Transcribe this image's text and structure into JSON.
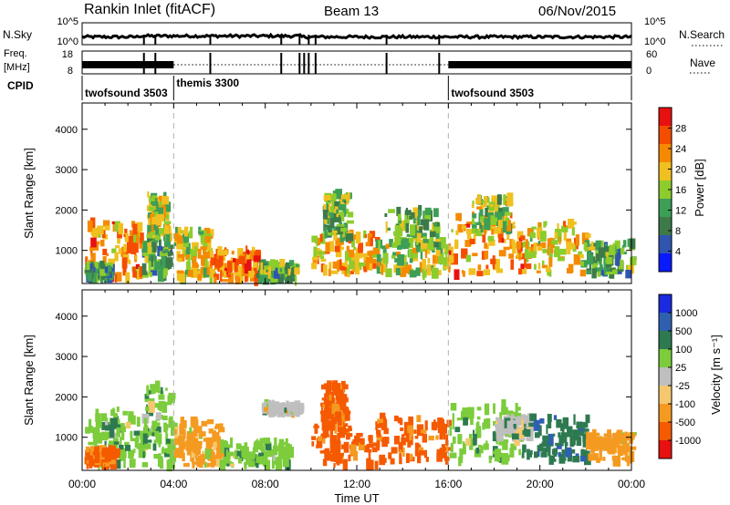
{
  "header": {
    "title": "Rankin Inlet (fitACF)",
    "beam": "Beam 13",
    "date": "06/Nov/2015"
  },
  "time_axis": {
    "label": "Time UT",
    "ticks": [
      "00:00",
      "04:00",
      "08:00",
      "12:00",
      "16:00",
      "20:00",
      "00:00"
    ],
    "hours": [
      0,
      4,
      8,
      12,
      16,
      20,
      24
    ]
  },
  "top_panels": {
    "nsky": {
      "label": "N.Sky",
      "tick_top": "10^5",
      "tick_bottom": "10^0",
      "right_label": "N.Search",
      "right_ticks": [
        "10^5",
        "10^0"
      ]
    },
    "freq": {
      "label_line1": "Freq.",
      "label_line2": "[MHz]",
      "ticks": [
        "18",
        "8"
      ],
      "right_label": "Nave",
      "right_ticks": [
        "60",
        "0"
      ]
    },
    "cpid": {
      "label": "CPID",
      "segments": [
        {
          "name": "twofsound 3503",
          "start": 0,
          "end": 4
        },
        {
          "name": "themis 3300",
          "start": 4,
          "end": 16
        },
        {
          "name": "twofsound 3503",
          "start": 16,
          "end": 24
        }
      ]
    }
  },
  "colors": {
    "power_scale": [
      "#0a1aff",
      "#2f55b0",
      "#3d7a4a",
      "#3d9e56",
      "#8ccc2c",
      "#f0c020",
      "#f58a00",
      "#f54d00",
      "#e81010"
    ],
    "velocity_scale": [
      "#e81010",
      "#f55a00",
      "#f59a20",
      "#f5c870",
      "#bfbfbf",
      "#7ccc3c",
      "#2e7a50",
      "#2f60b0",
      "#1a2ae0"
    ],
    "dashed_line": "#b0b0b0"
  },
  "chart_data": [
    {
      "type": "heatmap",
      "name_role": "power",
      "ylabel": "Slant Range [km]",
      "xlabel": "",
      "yticks": [
        1000,
        2000,
        3000,
        4000
      ],
      "ylim": [
        180,
        4650
      ],
      "xlim": [
        0,
        24
      ],
      "colorbar": {
        "label": "Power [dB]",
        "ticks": [
          4,
          8,
          12,
          16,
          20,
          24,
          28
        ],
        "range": [
          0,
          32
        ]
      },
      "dashed_times": [
        4,
        16
      ],
      "blocks": [
        {
          "t": [
            0.1,
            2.6
          ],
          "r": [
            300,
            1700
          ],
          "value": 26
        },
        {
          "t": [
            0.1,
            1.2
          ],
          "r": [
            300,
            650
          ],
          "value": 12
        },
        {
          "t": [
            2.6,
            3.8
          ],
          "r": [
            350,
            1200
          ],
          "value": 14
        },
        {
          "t": [
            2.8,
            3.7
          ],
          "r": [
            1300,
            2400
          ],
          "value": 20
        },
        {
          "t": [
            4.0,
            5.6
          ],
          "r": [
            300,
            1500
          ],
          "value": 20
        },
        {
          "t": [
            5.6,
            7.6
          ],
          "r": [
            250,
            1000
          ],
          "value": 27
        },
        {
          "t": [
            7.6,
            9.4
          ],
          "r": [
            250,
            700
          ],
          "value": 14
        },
        {
          "t": [
            10.0,
            12.8
          ],
          "r": [
            450,
            1400
          ],
          "value": 24
        },
        {
          "t": [
            10.5,
            11.6
          ],
          "r": [
            1300,
            2400
          ],
          "value": 16
        },
        {
          "t": [
            12.8,
            16.0
          ],
          "r": [
            400,
            1300
          ],
          "value": 20
        },
        {
          "t": [
            13.2,
            15.6
          ],
          "r": [
            1100,
            2000
          ],
          "value": 16
        },
        {
          "t": [
            16.0,
            19.2
          ],
          "r": [
            400,
            1900
          ],
          "value": 26
        },
        {
          "t": [
            17.0,
            18.6
          ],
          "r": [
            1500,
            2300
          ],
          "value": 18
        },
        {
          "t": [
            19.2,
            22.0
          ],
          "r": [
            400,
            1700
          ],
          "value": 22
        },
        {
          "t": [
            22.0,
            24.0
          ],
          "r": [
            400,
            1200
          ],
          "value": 14
        }
      ]
    },
    {
      "type": "heatmap",
      "name_role": "velocity",
      "ylabel": "Slant Range [km]",
      "xlabel": "Time UT",
      "yticks": [
        1000,
        2000,
        3000,
        4000
      ],
      "ylim": [
        180,
        4650
      ],
      "xlim": [
        0,
        24
      ],
      "colorbar": {
        "label": "Velocity [m s⁻¹]",
        "ticks": [
          1000,
          500,
          100,
          25,
          -25,
          -100,
          -500,
          -1000
        ]
      },
      "dashed_times": [
        4,
        16
      ],
      "blocks": [
        {
          "t": [
            0.1,
            2.6
          ],
          "r": [
            300,
            1700
          ],
          "value": 100
        },
        {
          "t": [
            0.1,
            1.4
          ],
          "r": [
            300,
            700
          ],
          "value": -500
        },
        {
          "t": [
            2.6,
            3.9
          ],
          "r": [
            300,
            2300
          ],
          "value": 100
        },
        {
          "t": [
            4.0,
            6.0
          ],
          "r": [
            300,
            1400
          ],
          "value": -100
        },
        {
          "t": [
            6.0,
            9.0
          ],
          "r": [
            300,
            900
          ],
          "value": 100
        },
        {
          "t": [
            7.8,
            9.6
          ],
          "r": [
            1600,
            1800
          ],
          "value": 25
        },
        {
          "t": [
            10.0,
            12.8
          ],
          "r": [
            300,
            1300
          ],
          "value": -500
        },
        {
          "t": [
            10.4,
            11.5
          ],
          "r": [
            1300,
            2300
          ],
          "value": -500
        },
        {
          "t": [
            12.8,
            16.0
          ],
          "r": [
            400,
            1500
          ],
          "value": -500
        },
        {
          "t": [
            16.0,
            19.2
          ],
          "r": [
            400,
            1800
          ],
          "value": 100
        },
        {
          "t": [
            18.0,
            19.5
          ],
          "r": [
            1000,
            1500
          ],
          "value": 25
        },
        {
          "t": [
            19.2,
            22.0
          ],
          "r": [
            400,
            1500
          ],
          "value": 500
        },
        {
          "t": [
            22.0,
            24.0
          ],
          "r": [
            400,
            1100
          ],
          "value": -100
        }
      ]
    }
  ]
}
